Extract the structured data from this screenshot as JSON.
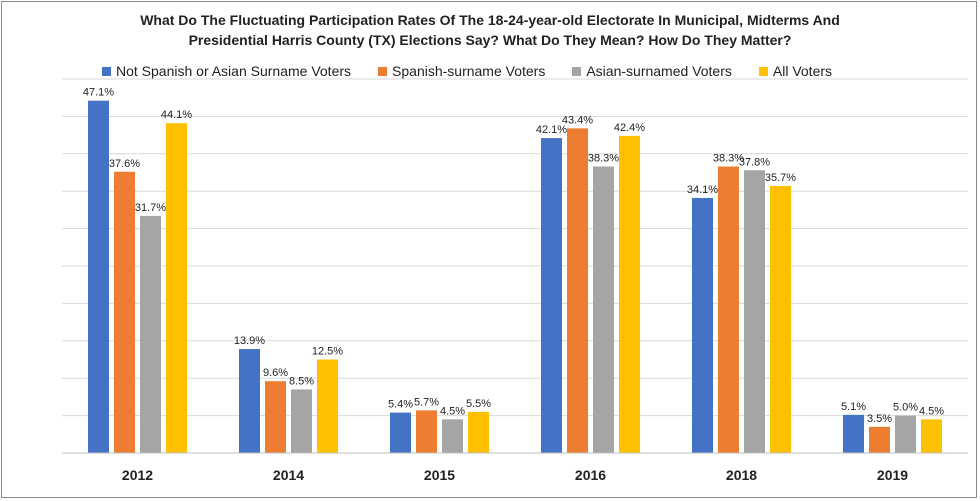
{
  "chart_data": {
    "type": "bar",
    "title_lines": [
      "What Do The Fluctuating Participation Rates Of The 18-24-year-old Electorate In Municipal, Midterms And",
      "Presidential Harris County (TX) Elections Say? What Do They Mean? How Do They Matter?"
    ],
    "categories": [
      "2012",
      "2014",
      "2015",
      "2016",
      "2018",
      "2019"
    ],
    "series": [
      {
        "name": "Not Spanish or Asian Surname Voters",
        "color": "#4472C4",
        "values": [
          47.1,
          13.9,
          5.4,
          42.1,
          34.1,
          5.1
        ],
        "labels": [
          "47.1%",
          "13.9%",
          "5.4%",
          "42.1%",
          "34.1%",
          "5.1%"
        ]
      },
      {
        "name": "Spanish-surname Voters",
        "color": "#ED7D31",
        "values": [
          37.6,
          9.6,
          5.7,
          43.4,
          38.3,
          3.5
        ],
        "labels": [
          "37.6%",
          "9.6%",
          "5.7%",
          "43.4%",
          "38.3%",
          "3.5%"
        ]
      },
      {
        "name": "Asian-surnamed Voters",
        "color": "#A5A5A5",
        "values": [
          31.7,
          8.5,
          4.5,
          38.3,
          37.8,
          5.0
        ],
        "labels": [
          "31.7%",
          "8.5%",
          "4.5%",
          "38.3%",
          "37.8%",
          "5.0%"
        ]
      },
      {
        "name": "All Voters",
        "color": "#FFC000",
        "values": [
          44.1,
          12.5,
          5.5,
          42.4,
          35.7,
          4.5
        ],
        "labels": [
          "44.1%",
          "12.5%",
          "5.5%",
          "42.4%",
          "35.7%",
          "4.5%"
        ]
      }
    ],
    "ylim": [
      0,
      50
    ],
    "y_gridline_step": 5,
    "y_tick_labels_shown": false,
    "grid": true,
    "legend_position": "top"
  }
}
